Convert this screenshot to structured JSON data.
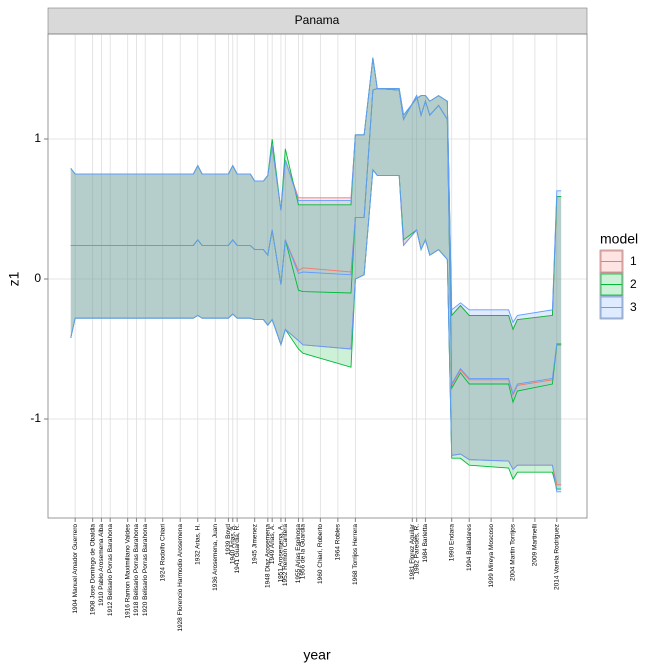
{
  "chart_data": {
    "type": "ribbon",
    "facet": "Panama",
    "xlabel": "year",
    "ylabel": "z1",
    "legend_title": "model",
    "legend_position": "right",
    "grid": true,
    "xlim": [
      1897.8,
      2020.9
    ],
    "ylim": [
      -1.707,
      1.75
    ],
    "yticks": [
      -1,
      0,
      1
    ],
    "xticks": [
      {
        "value": 1904,
        "label": "1904 Manuel Amador Guerrero"
      },
      {
        "value": 1908,
        "label": "1908 Jose Domingo de Obaldia"
      },
      {
        "value": 1910,
        "label": "1910 Pablo Arosemena Alba"
      },
      {
        "value": 1912,
        "label": "1912 Belisario Porras Barahona"
      },
      {
        "value": 1916,
        "label": "1916 Ramon Maximiliano Valdes"
      },
      {
        "value": 1918,
        "label": "1918 Belisario Porras Barahona"
      },
      {
        "value": 1920,
        "label": "1920 Belisario Porras Barahona"
      },
      {
        "value": 1924,
        "label": "1924 Rodolfo Chiari"
      },
      {
        "value": 1928,
        "label": "1928 Florencio Harmodio Arosemena"
      },
      {
        "value": 1932,
        "label": "1932 Arias, H."
      },
      {
        "value": 1936,
        "label": "1936 Arosemena, Juan"
      },
      {
        "value": 1939,
        "label": "1939 Boyd"
      },
      {
        "value": 1940,
        "label": "1940 Arias, A."
      },
      {
        "value": 1941,
        "label": "1941 Guardia, R."
      },
      {
        "value": 1945,
        "label": "1945 Jimenez"
      },
      {
        "value": 1948,
        "label": "1948 Diaz Arosemena"
      },
      {
        "value": 1949,
        "label": "1949 Arias, A."
      },
      {
        "value": 1951,
        "label": "1951 Arosemena, A."
      },
      {
        "value": 1952,
        "label": "1952 Remon Cantera"
      },
      {
        "value": 1955,
        "label": "1955 Arias Espinosa"
      },
      {
        "value": 1956,
        "label": "1956 de la Guardia"
      },
      {
        "value": 1960,
        "label": "1960 Chiari, Roberto"
      },
      {
        "value": 1964,
        "label": "1964 Robles"
      },
      {
        "value": 1968,
        "label": "1968 Torrijos Herrera"
      },
      {
        "value": 1981,
        "label": "1981 Florez Aguilar"
      },
      {
        "value": 1982,
        "label": "1982 Paredes, R."
      },
      {
        "value": 1984,
        "label": "1984 Barletta"
      },
      {
        "value": 1990,
        "label": "1990 Endara"
      },
      {
        "value": 1994,
        "label": "1994 Balladares"
      },
      {
        "value": 1999,
        "label": "1999 Mireya Moscoso"
      },
      {
        "value": 2004,
        "label": "2004 Martin Torrijos"
      },
      {
        "value": 2009,
        "label": "2009 Martinelli"
      },
      {
        "value": 2014,
        "label": "2014 Varela Rodriguez"
      }
    ],
    "x": [
      1903,
      1904,
      1931,
      1932,
      1933,
      1939,
      1940,
      1941,
      1944,
      1945,
      1947,
      1948,
      1949,
      1951,
      1952,
      1955,
      1956,
      1967,
      1968,
      1970,
      1972,
      1973,
      1978,
      1979,
      1982,
      1983,
      1984,
      1985,
      1987,
      1989,
      1990,
      1992,
      1994,
      2003,
      2004,
      2005,
      2013,
      2014,
      2015
    ],
    "series": [
      {
        "name": "1",
        "color": "#F8766D",
        "values": [
          0.24,
          0.24,
          0.24,
          0.28,
          0.24,
          0.24,
          0.28,
          0.24,
          0.24,
          0.21,
          0.21,
          0.17,
          0.35,
          -0.04,
          0.28,
          0.06,
          0.08,
          0.05,
          0.44,
          0.44,
          1.35,
          1.36,
          1.35,
          1.14,
          1.31,
          1.17,
          1.27,
          1.17,
          1.24,
          1.14,
          -0.76,
          -0.65,
          -0.72,
          -0.72,
          -0.83,
          -0.76,
          -0.72,
          -0.47,
          -0.47
        ],
        "lower": [
          -0.42,
          -0.28,
          -0.28,
          -0.26,
          -0.28,
          -0.28,
          -0.25,
          -0.28,
          -0.28,
          -0.29,
          -0.29,
          -0.33,
          -0.29,
          -0.47,
          -0.36,
          -0.44,
          -0.47,
          -0.5,
          0.0,
          0.03,
          0.78,
          0.74,
          0.74,
          0.24,
          0.35,
          0.21,
          0.28,
          0.17,
          0.21,
          0.14,
          -1.26,
          -1.25,
          -1.29,
          -1.3,
          -1.36,
          -1.33,
          -1.33,
          -1.47,
          -1.47
        ],
        "upper": [
          0.79,
          0.75,
          0.75,
          0.81,
          0.75,
          0.75,
          0.81,
          0.75,
          0.75,
          0.7,
          0.7,
          0.74,
          0.95,
          0.49,
          0.85,
          0.58,
          0.58,
          0.58,
          1.03,
          1.03,
          1.58,
          1.36,
          1.36,
          1.17,
          1.29,
          1.31,
          1.31,
          1.27,
          1.31,
          1.27,
          -0.26,
          -0.19,
          -0.26,
          -0.26,
          -0.36,
          -0.29,
          -0.26,
          0.59,
          0.59
        ]
      },
      {
        "name": "2",
        "color": "#00BA38",
        "values": [
          0.24,
          0.24,
          0.24,
          0.28,
          0.24,
          0.24,
          0.28,
          0.24,
          0.24,
          0.21,
          0.21,
          0.17,
          0.35,
          -0.04,
          0.28,
          -0.08,
          -0.09,
          -0.1,
          0.44,
          0.44,
          1.35,
          1.36,
          1.35,
          1.14,
          1.31,
          1.17,
          1.27,
          1.17,
          1.24,
          1.14,
          -0.78,
          -0.67,
          -0.75,
          -0.75,
          -0.88,
          -0.8,
          -0.75,
          -0.47,
          -0.47
        ],
        "lower": [
          -0.42,
          -0.28,
          -0.28,
          -0.26,
          -0.28,
          -0.28,
          -0.25,
          -0.28,
          -0.28,
          -0.29,
          -0.29,
          -0.33,
          -0.29,
          -0.47,
          -0.36,
          -0.5,
          -0.53,
          -0.63,
          0.0,
          0.03,
          0.78,
          0.74,
          0.74,
          0.28,
          0.35,
          0.21,
          0.28,
          0.17,
          0.21,
          0.14,
          -1.28,
          -1.28,
          -1.33,
          -1.35,
          -1.43,
          -1.38,
          -1.38,
          -1.5,
          -1.5
        ],
        "upper": [
          0.79,
          0.75,
          0.75,
          0.81,
          0.75,
          0.75,
          0.81,
          0.75,
          0.75,
          0.7,
          0.7,
          0.74,
          1.0,
          0.49,
          0.93,
          0.53,
          0.53,
          0.53,
          1.03,
          1.03,
          1.58,
          1.36,
          1.36,
          1.17,
          1.29,
          1.31,
          1.31,
          1.27,
          1.31,
          1.27,
          -0.26,
          -0.19,
          -0.26,
          -0.26,
          -0.36,
          -0.29,
          -0.26,
          0.59,
          0.59
        ]
      },
      {
        "name": "3",
        "color": "#619CFF",
        "values": [
          0.24,
          0.24,
          0.24,
          0.28,
          0.24,
          0.24,
          0.28,
          0.24,
          0.24,
          0.21,
          0.21,
          0.17,
          0.35,
          -0.04,
          0.28,
          0.04,
          0.05,
          0.03,
          0.44,
          0.44,
          1.35,
          1.36,
          1.35,
          1.14,
          1.31,
          1.17,
          1.27,
          1.17,
          1.24,
          1.14,
          -0.75,
          -0.64,
          -0.71,
          -0.71,
          -0.82,
          -0.75,
          -0.71,
          -0.46,
          -0.46
        ],
        "lower": [
          -0.42,
          -0.28,
          -0.28,
          -0.26,
          -0.28,
          -0.28,
          -0.25,
          -0.28,
          -0.28,
          -0.29,
          -0.29,
          -0.33,
          -0.29,
          -0.47,
          -0.36,
          -0.44,
          -0.47,
          -0.5,
          0.0,
          0.03,
          0.78,
          0.74,
          0.74,
          0.24,
          0.35,
          0.21,
          0.28,
          0.17,
          0.21,
          0.14,
          -1.26,
          -1.25,
          -1.29,
          -1.3,
          -1.36,
          -1.33,
          -1.33,
          -1.52,
          -1.52
        ],
        "upper": [
          0.79,
          0.75,
          0.75,
          0.81,
          0.75,
          0.75,
          0.81,
          0.75,
          0.75,
          0.7,
          0.7,
          0.74,
          0.95,
          0.49,
          0.85,
          0.56,
          0.56,
          0.56,
          1.03,
          1.03,
          1.58,
          1.36,
          1.36,
          1.17,
          1.29,
          1.31,
          1.31,
          1.27,
          1.31,
          1.27,
          -0.22,
          -0.17,
          -0.22,
          -0.22,
          -0.31,
          -0.26,
          -0.22,
          0.63,
          0.63
        ]
      }
    ]
  }
}
